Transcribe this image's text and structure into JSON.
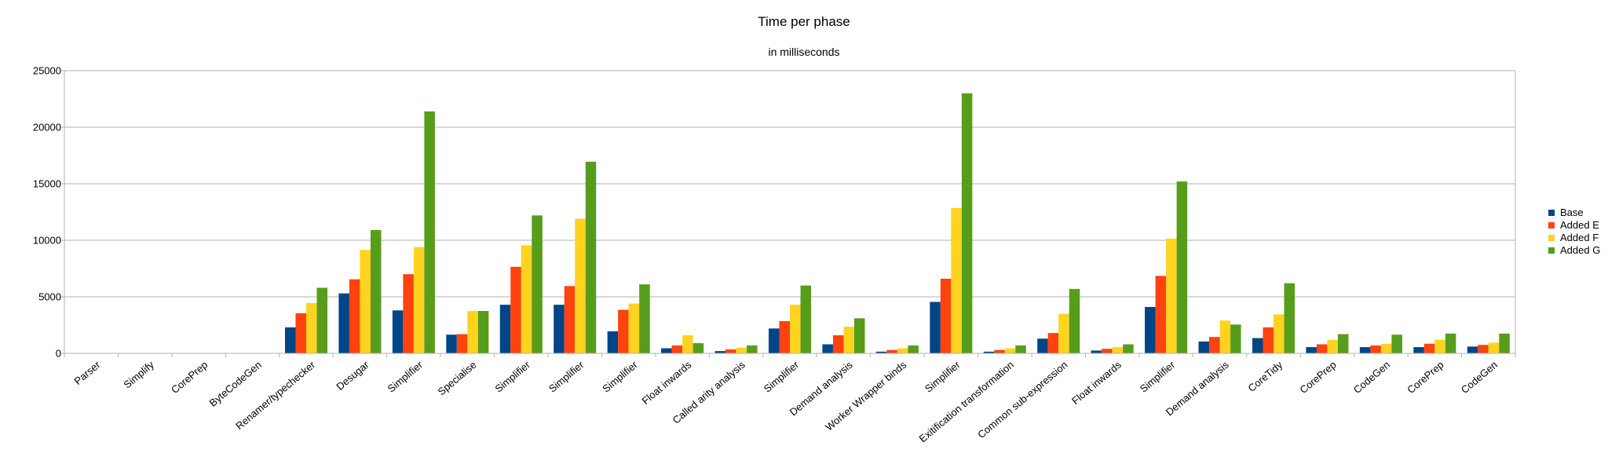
{
  "chart_data": {
    "type": "bar",
    "title": "Time per phase",
    "subtitle": "in milliseconds",
    "xlabel": "",
    "ylabel": "",
    "ylim": [
      0,
      25000
    ],
    "yticks": [
      "0",
      "5000",
      "10000",
      "15000",
      "20000",
      "25000"
    ],
    "grid": true,
    "legend_position": "right",
    "categories": [
      "Parser",
      "Simplify",
      "CorePrep",
      "ByteCodeGen",
      "Renamer/typechecker",
      "Desugar",
      "Simplifier",
      "Specialise",
      "Simplifier",
      "Simplifier",
      "Simplifier",
      "Float inwards",
      "Called arity analysis",
      "Simplifier",
      "Demand analysis",
      "Worker Wrapper binds",
      "Simplifier",
      "Exitification transformation",
      "Common sub-expression",
      "Float inwards",
      "Simplifier",
      "Demand analysis",
      "CoreTidy",
      "CorePrep",
      "CodeGen",
      "CorePrep",
      "CodeGen"
    ],
    "series": [
      {
        "name": "Base",
        "color": "#004586",
        "values": [
          0,
          0,
          0,
          0,
          2300,
          5300,
          3800,
          1650,
          4300,
          4300,
          1950,
          450,
          200,
          2200,
          800,
          150,
          4550,
          150,
          1300,
          250,
          4100,
          1050,
          1350,
          550,
          550,
          550,
          600
        ]
      },
      {
        "name": "Added E",
        "color": "#ff420e",
        "values": [
          0,
          0,
          0,
          0,
          3550,
          6550,
          7000,
          1700,
          7650,
          5950,
          3850,
          700,
          350,
          2850,
          1600,
          300,
          6600,
          300,
          1800,
          400,
          6850,
          1450,
          2300,
          800,
          700,
          850,
          750
        ]
      },
      {
        "name": "Added F",
        "color": "#ffd320",
        "values": [
          0,
          0,
          0,
          0,
          4450,
          9150,
          9400,
          3750,
          9550,
          11900,
          4400,
          1600,
          500,
          4300,
          2350,
          450,
          12850,
          450,
          3500,
          550,
          10150,
          2900,
          3450,
          1200,
          850,
          1200,
          950
        ]
      },
      {
        "name": "Added G",
        "color": "#579d1c",
        "values": [
          0,
          0,
          0,
          0,
          5800,
          10900,
          21400,
          3750,
          12200,
          16950,
          6100,
          900,
          700,
          6000,
          3100,
          700,
          23000,
          700,
          5700,
          800,
          15200,
          2550,
          6200,
          1700,
          1650,
          1750,
          1750
        ]
      }
    ]
  }
}
